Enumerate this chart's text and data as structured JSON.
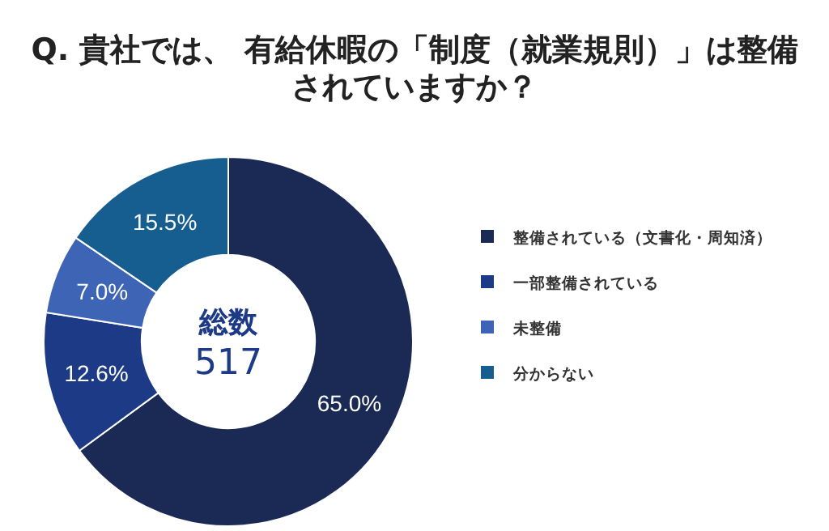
{
  "chart_data": {
    "type": "donut",
    "title": "Q. 貴社では、 有給休暇の「制度（就業規則）」は整備されていますか？",
    "categories": [
      "整備されている（文書化・周知済）",
      "一部整備されている",
      "未整備",
      "分からない"
    ],
    "values": [
      65.0,
      12.6,
      7.0,
      15.5
    ],
    "colors": [
      "#1b2a55",
      "#1c3a86",
      "#3e64b6",
      "#175e90"
    ],
    "value_labels": [
      "65.0%",
      "12.6%",
      "7.0%",
      "15.5%"
    ],
    "annotations": [
      "総数",
      "517"
    ],
    "legend": "right"
  }
}
